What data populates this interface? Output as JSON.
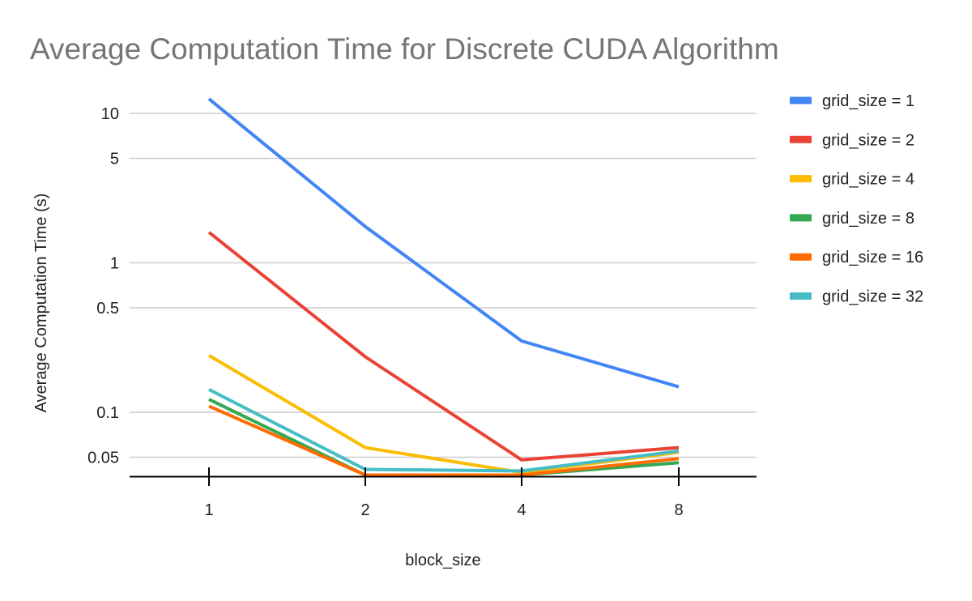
{
  "chart_data": {
    "type": "line",
    "title": "Average Computation Time for Discrete CUDA Algorithm",
    "xlabel": "block_size",
    "ylabel": "Average Computation Time (s)",
    "yscale": "log",
    "ylim": [
      0.038,
      20
    ],
    "grid": true,
    "legend_position": "right",
    "categories": [
      "1",
      "2",
      "4",
      "8"
    ],
    "yticks": [
      {
        "value": 10,
        "label": "10"
      },
      {
        "value": 5,
        "label": "5"
      },
      {
        "value": 1,
        "label": "1"
      },
      {
        "value": 0.5,
        "label": "0.5"
      },
      {
        "value": 0.1,
        "label": "0.1"
      },
      {
        "value": 0.05,
        "label": "0.05"
      }
    ],
    "series": [
      {
        "name": "grid_size = 1",
        "color": "#4285f4",
        "values": [
          12.5,
          1.75,
          0.3,
          0.148
        ]
      },
      {
        "name": "grid_size = 2",
        "color": "#ea4335",
        "values": [
          1.6,
          0.235,
          0.048,
          0.058
        ]
      },
      {
        "name": "grid_size = 4",
        "color": "#fbbc04",
        "values": [
          0.24,
          0.058,
          0.0395,
          0.054
        ]
      },
      {
        "name": "grid_size = 8",
        "color": "#34a853",
        "values": [
          0.122,
          0.038,
          0.038,
          0.046
        ]
      },
      {
        "name": "grid_size = 16",
        "color": "#ff6d01",
        "values": [
          0.11,
          0.038,
          0.038,
          0.049
        ]
      },
      {
        "name": "grid_size = 32",
        "color": "#46bdc6",
        "values": [
          0.142,
          0.0415,
          0.0405,
          0.055
        ]
      }
    ]
  }
}
